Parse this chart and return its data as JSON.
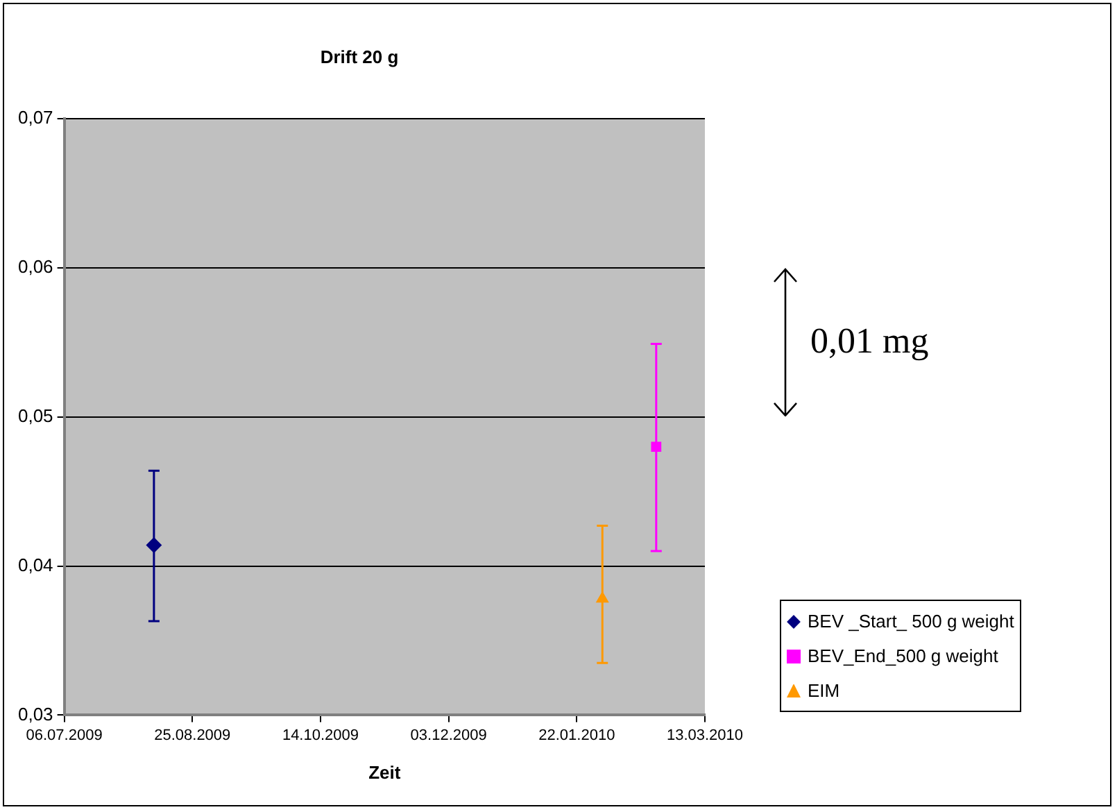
{
  "chart_data": {
    "type": "scatter",
    "title": "Drift 20 g",
    "xlabel": "Zeit",
    "xlim": [
      "2009-07-06",
      "2010-03-13"
    ],
    "xticks": [
      {
        "value": "2009-07-06",
        "label": "06.07.2009"
      },
      {
        "value": "2009-08-25",
        "label": "25.08.2009"
      },
      {
        "value": "2009-10-14",
        "label": "14.10.2009"
      },
      {
        "value": "2009-12-03",
        "label": "03.12.2009"
      },
      {
        "value": "2010-01-22",
        "label": "22.01.2010"
      },
      {
        "value": "2010-03-13",
        "label": "13.03.2010"
      }
    ],
    "ylim": [
      0.03,
      0.07
    ],
    "yticks": [
      {
        "value": 0.03,
        "label": "0,03"
      },
      {
        "value": 0.04,
        "label": "0,04"
      },
      {
        "value": 0.05,
        "label": "0,05"
      },
      {
        "value": 0.06,
        "label": "0,06"
      },
      {
        "value": 0.07,
        "label": "0,07"
      }
    ],
    "grid": "y",
    "legend": "bottom right",
    "series": [
      {
        "name": "BEV _Start_ 500 g weight",
        "color": "#000080",
        "marker": "diamond",
        "x": [
          "2009-08-10"
        ],
        "values": [
          0.0414
        ],
        "errors": [
          [
            0.0363,
            0.0464
          ]
        ]
      },
      {
        "name": "BEV_End_500 g weight",
        "color": "#ff00ff",
        "marker": "square",
        "x": [
          "2010-02-22"
        ],
        "values": [
          0.048
        ],
        "errors": [
          [
            0.041,
            0.0549
          ]
        ]
      },
      {
        "name": "EIM",
        "color": "#ff9900",
        "marker": "triangle",
        "x": [
          "2010-02-01"
        ],
        "values": [
          0.0378
        ],
        "errors": [
          [
            0.0335,
            0.0427
          ]
        ]
      }
    ],
    "annotations": [
      "0,01 mg"
    ]
  }
}
